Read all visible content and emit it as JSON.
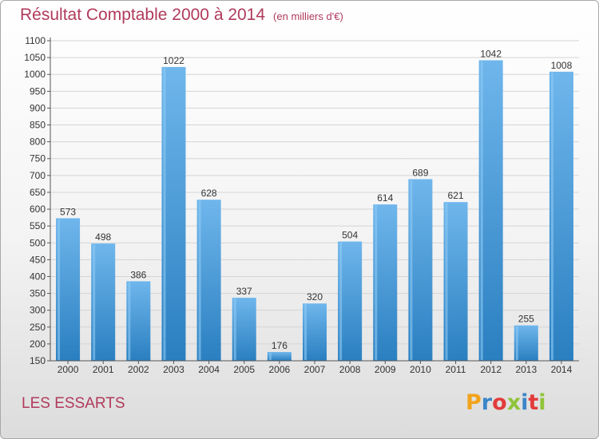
{
  "header": {
    "title": "Résultat Comptable 2000 à 2014",
    "unit": "(en milliers d'€)"
  },
  "footer": {
    "commune": "LES ESSARTS",
    "logo_letters": [
      "P",
      "r",
      "o",
      "x",
      "i",
      "t",
      "i"
    ],
    "logo_colors": [
      "#f2a31b",
      "#3a86c8",
      "#e23b3b",
      "#8fc43a",
      "#3a86c8",
      "#e23b3b",
      "#8fc43a"
    ]
  },
  "colors": {
    "title": "#b03a5c",
    "bar_light": "#6fb6ec",
    "bar_dark": "#2a7fc0",
    "grid": "#d4d4d4"
  },
  "chart_data": {
    "type": "bar",
    "title": "Résultat Comptable 2000 à 2014",
    "categories": [
      "2000",
      "2001",
      "2002",
      "2003",
      "2004",
      "2005",
      "2006",
      "2007",
      "2008",
      "2009",
      "2010",
      "2011",
      "2012",
      "2013",
      "2014"
    ],
    "values": [
      573,
      498,
      386,
      1022,
      628,
      337,
      176,
      320,
      504,
      614,
      689,
      621,
      1042,
      255,
      1008
    ],
    "ylim": [
      150,
      1100
    ],
    "yticks": [
      150,
      200,
      250,
      300,
      350,
      400,
      450,
      500,
      550,
      600,
      650,
      700,
      750,
      800,
      850,
      900,
      950,
      1000,
      1050,
      1100
    ],
    "grid": true
  }
}
